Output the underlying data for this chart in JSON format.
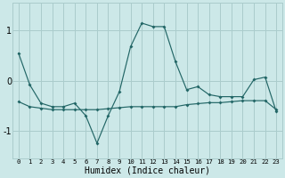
{
  "x": [
    0,
    1,
    2,
    3,
    4,
    5,
    6,
    7,
    8,
    9,
    10,
    11,
    12,
    13,
    14,
    15,
    16,
    17,
    18,
    19,
    20,
    21,
    22,
    23
  ],
  "y_line1": [
    0.55,
    -0.08,
    -0.45,
    -0.52,
    -0.52,
    -0.45,
    -0.7,
    -1.25,
    -0.7,
    -0.22,
    0.68,
    1.15,
    1.08,
    1.08,
    0.38,
    -0.18,
    -0.12,
    -0.28,
    -0.32,
    -0.32,
    -0.32,
    0.02,
    0.07,
    -0.62
  ],
  "y_line2": [
    -0.42,
    -0.52,
    -0.55,
    -0.58,
    -0.58,
    -0.58,
    -0.58,
    -0.58,
    -0.56,
    -0.54,
    -0.52,
    -0.52,
    -0.52,
    -0.52,
    -0.52,
    -0.48,
    -0.46,
    -0.44,
    -0.44,
    -0.42,
    -0.4,
    -0.4,
    -0.4,
    -0.58
  ],
  "xlabel": "Humidex (Indice chaleur)",
  "bg_color": "#cce8e8",
  "grid_color": "#aacccc",
  "line_color": "#226666",
  "xlim": [
    -0.5,
    23.5
  ],
  "ylim": [
    -1.55,
    1.55
  ],
  "yticks": [
    -1,
    0,
    1
  ],
  "xtick_labels": [
    "0",
    "1",
    "2",
    "3",
    "4",
    "5",
    "6",
    "7",
    "8",
    "9",
    "10",
    "11",
    "12",
    "13",
    "14",
    "15",
    "16",
    "17",
    "18",
    "19",
    "20",
    "21",
    "22",
    "23"
  ]
}
